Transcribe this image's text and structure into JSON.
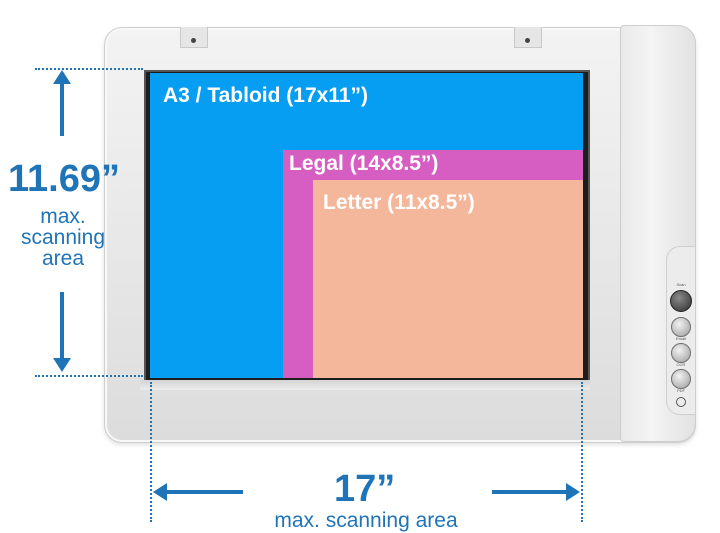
{
  "paper_sizes": {
    "a3": "A3 / Tabloid (17x11”)",
    "legal": "Legal (14x8.5”)",
    "letter": "Letter (11x8.5”)"
  },
  "height_dimension": {
    "value": "11.69”",
    "caption_lines": [
      "max.",
      "scanning",
      "area"
    ]
  },
  "width_dimension": {
    "value": "17”",
    "caption": "max. scanning area"
  },
  "scanner_buttons": [
    "Scan",
    "Email",
    "OCR",
    "PDF"
  ],
  "colors": {
    "a3": "#059ef3",
    "legal": "#d65ec3",
    "letter": "#f4b79b",
    "dimension": "#1f74b8"
  }
}
